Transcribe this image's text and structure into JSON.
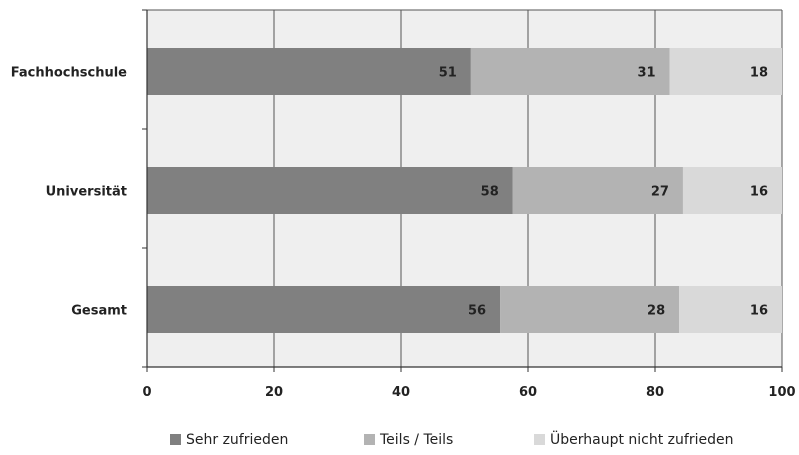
{
  "chart_data": {
    "type": "bar",
    "orientation": "horizontal",
    "stacked": true,
    "categories": [
      "Fachhochschule",
      "Universität",
      "Gesamt"
    ],
    "series": [
      {
        "name": "Sehr zufrieden",
        "values": [
          51,
          58,
          56
        ],
        "color": "#808080"
      },
      {
        "name": "Teils / Teils",
        "values": [
          31,
          27,
          28
        ],
        "color": "#b3b3b3"
      },
      {
        "name": "Überhaupt nicht zufrieden",
        "values": [
          18,
          16,
          16
        ],
        "color": "#d9d9d9"
      }
    ],
    "bar_ends": [
      [
        51,
        82.3,
        100
      ],
      [
        57.6,
        84.4,
        100
      ],
      [
        55.6,
        83.8,
        100
      ]
    ],
    "xlim": [
      0,
      100
    ],
    "xticks": [
      0,
      20,
      40,
      60,
      80,
      100
    ],
    "grid": true,
    "legend": "bottom",
    "plot_background": "#efefef",
    "grid_color": "#555555"
  }
}
